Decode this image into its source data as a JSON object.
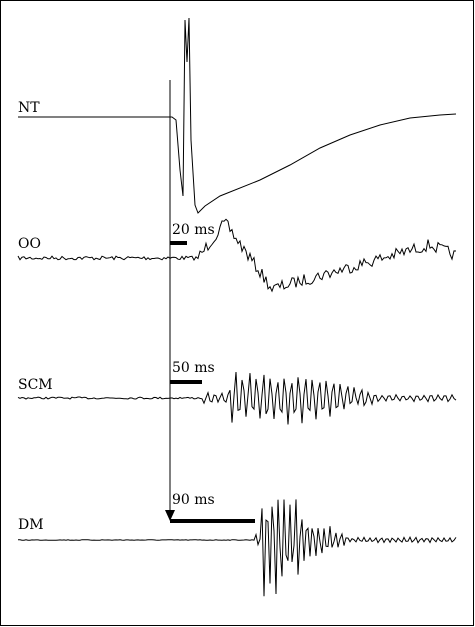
{
  "traces": [
    {
      "label": "NT"
    },
    {
      "label": "OO",
      "latency": "20 ms"
    },
    {
      "label": "SCM",
      "latency": "50 ms"
    },
    {
      "label": "DM",
      "latency": "90 ms"
    }
  ]
}
